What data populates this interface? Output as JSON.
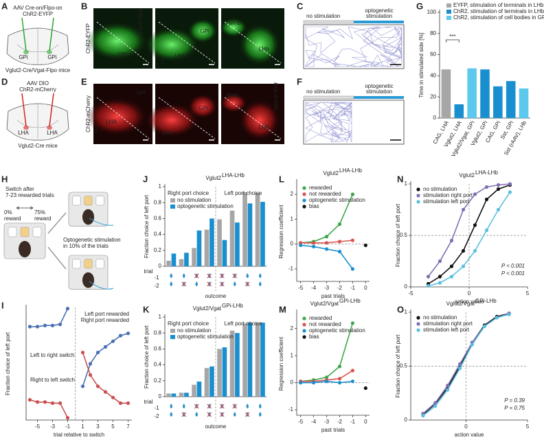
{
  "panel_labels": [
    "A",
    "B",
    "C",
    "D",
    "E",
    "F",
    "G",
    "H",
    "I",
    "J",
    "K",
    "L",
    "M",
    "N",
    "O"
  ],
  "panels": {
    "A": {
      "virus": "AAV Cre-on/Flpo-on",
      "construct": "ChR2-EYFP",
      "regions": [
        "GPi",
        "GPi"
      ],
      "mice": "Vglut2-Cre/Vgat-Flpo mice"
    },
    "B": {
      "stain": "ChR2-EYFP",
      "labels": [
        "GPi",
        "optical fiber",
        "LHA",
        "f",
        "GPi",
        "MHb",
        "LHb"
      ]
    },
    "C": {
      "left": "no stimulation",
      "right": [
        "optogenetic",
        "stimulation"
      ]
    },
    "D": {
      "virus": "AAV DIO",
      "construct": "ChR2-mCherry",
      "regions": [
        "LHA",
        "LHA"
      ],
      "mice": "Vglut2-Cre mice"
    },
    "E": {
      "stain": "ChR2-mCherry",
      "labels": [
        "GPi",
        "LHA",
        "f",
        "GPi",
        "LHA",
        "MHb",
        "LHb",
        "optical fiber"
      ]
    },
    "F": {
      "left": "no stimulation",
      "right": [
        "optogenetic",
        "stimulation"
      ]
    },
    "H": {
      "switch": [
        "Switch after",
        "7-23 rewarded trials"
      ],
      "low_pct": "0%",
      "low": "reward",
      "high_pct": "75%",
      "high": "reward",
      "stim": [
        "Optogenetic stimulation",
        "in 10% of the trials"
      ]
    }
  },
  "chart_data": [
    {
      "type": "bar",
      "ylabel": "Time in stimulated side [%]",
      "categories": [
        "CAG, LHA",
        "Vglut2, LHA",
        "Vglut2/Vgat, GPi",
        "Vglut2, GPi",
        "CAG, GPi",
        "Sst, GPi",
        "Sst (rAAV), LHb"
      ],
      "series": [
        {
          "name": "EYFP, stimulation of terminals in LHb",
          "color": "#a6a6a6",
          "values": [
            46,
            null,
            null,
            null,
            null,
            null,
            null
          ]
        },
        {
          "name": "ChR2, stimulation of terminals in LHb",
          "color": "#1a8fd0",
          "values": [
            null,
            13,
            null,
            46,
            30,
            35,
            null
          ]
        },
        {
          "name": "ChR2, stimulation of cell bodies in GPi",
          "color": "#5cc8ee",
          "values": [
            null,
            null,
            47,
            null,
            null,
            null,
            28
          ]
        }
      ],
      "ylim": [
        0,
        100
      ],
      "yticks": [
        0,
        20,
        40,
        60,
        80,
        100
      ],
      "annotations": [
        "***"
      ]
    },
    {
      "type": "line",
      "xlabel": "trial relative to switch",
      "ylabel": "Fraction choice of left port",
      "x": [
        -6,
        -5,
        -4,
        -3,
        -2,
        -1,
        0,
        1,
        2,
        3,
        4,
        5,
        6,
        7
      ],
      "series": [
        {
          "name": "Left port rewarded",
          "color": "#4a6fb5",
          "values": [
            0.83,
            0.83,
            0.84,
            0.84,
            0.85,
            0.99,
            null,
            0.3,
            0.5,
            0.6,
            0.65,
            0.7,
            0.75,
            0.77
          ]
        },
        {
          "name": "Right port rewarded",
          "color": "#c9504f",
          "values": [
            0.18,
            0.16,
            0.16,
            0.15,
            0.15,
            0.02,
            null,
            0.6,
            0.4,
            0.3,
            0.25,
            0.2,
            0.15,
            0.15
          ]
        }
      ],
      "xlim": [
        -6.5,
        7.5
      ],
      "ylim": [
        0,
        1
      ],
      "xticks": [
        -5,
        -3,
        -1,
        1,
        3,
        5,
        7
      ],
      "vline": 0,
      "annotations": [
        "Left to right switch",
        "Right to left switch"
      ]
    },
    {
      "type": "bar",
      "title": "Vglut2",
      "title_superscript": "LHA-LHb",
      "ylabel": "Fraction choice of left port",
      "xlabel": "outcome",
      "row_labels": [
        "trial",
        "-1",
        "-2"
      ],
      "categories": [
        null,
        null,
        null,
        null,
        null,
        null,
        null,
        null
      ],
      "series": [
        {
          "name": "no stimulation",
          "color": "#a6a6a6",
          "values": [
            0.07,
            0.09,
            0.23,
            0.46,
            0.59,
            0.7,
            0.93,
            0.92
          ]
        },
        {
          "name": "optogenetic stimulation",
          "color": "#1a8fd0",
          "values": [
            0.16,
            0.17,
            0.45,
            0.6,
            0.33,
            0.55,
            0.79,
            0.81
          ]
        }
      ],
      "ylim": [
        0,
        1
      ],
      "yticks": [
        0,
        0.2,
        0.4,
        0.6,
        0.8,
        1
      ],
      "annotations": [
        "Right port choice",
        "Left port choice"
      ],
      "annotation_colors": [
        "#c9504f",
        "#4a6fb5"
      ]
    },
    {
      "type": "bar",
      "title": "Vglut2/Vgat",
      "title_superscript": "GPi-LHb",
      "ylabel": "Fraction choice of left port",
      "xlabel": "outcome",
      "row_labels": [
        "trial",
        "-1",
        "-2"
      ],
      "categories": [
        null,
        null,
        null,
        null,
        null,
        null,
        null,
        null
      ],
      "series": [
        {
          "name": "no stimulation",
          "color": "#a6a6a6",
          "values": [
            0.04,
            0.05,
            0.15,
            0.36,
            0.6,
            0.83,
            0.92,
            0.93
          ]
        },
        {
          "name": "optogenetic stimulation",
          "color": "#1a8fd0",
          "values": [
            0.04,
            0.05,
            0.19,
            0.38,
            0.62,
            0.8,
            0.93,
            0.93
          ]
        }
      ],
      "ylim": [
        0,
        1
      ],
      "yticks": [
        0,
        0.2,
        0.4,
        0.6,
        0.8,
        1
      ],
      "annotations": [
        "Right port choice",
        "Left port choice"
      ],
      "annotation_colors": [
        "#c9504f",
        "#4a6fb5"
      ]
    },
    {
      "type": "line",
      "title": "Vglut2",
      "title_superscript": "LHA-LHb",
      "xlabel": "past trials",
      "ylabel": "Regression coefficient",
      "x": [
        -5,
        -4,
        -3,
        -2,
        -1
      ],
      "series": [
        {
          "name": "rewarded",
          "color": "#3da64a",
          "values": [
            0.05,
            0.1,
            0.3,
            0.8,
            2.0
          ]
        },
        {
          "name": "not rewarded",
          "color": "#d9534f",
          "values": [
            0.05,
            0.05,
            0.05,
            0.1,
            0.15
          ]
        },
        {
          "name": "optogenetic stimulation",
          "color": "#1a8fd0",
          "values": [
            -0.05,
            -0.1,
            -0.2,
            -0.3,
            -1.0
          ]
        },
        {
          "name": "bias",
          "color": "#111111",
          "x": [
            0
          ],
          "values": [
            -0.05
          ]
        }
      ],
      "xlim": [
        -5.3,
        0.3
      ],
      "ylim": [
        -1.5,
        2.5
      ],
      "xticks": [
        -5,
        -4,
        -3,
        -2,
        -1,
        0
      ],
      "yticks": [
        -1,
        0,
        1,
        2
      ],
      "hline": 0
    },
    {
      "type": "line",
      "title": "Vglut2/Vgat",
      "title_superscript": "GPi-LHb",
      "xlabel": "past trials",
      "ylabel": "Regression coefficient",
      "x": [
        -5,
        -4,
        -3,
        -2,
        -1
      ],
      "series": [
        {
          "name": "rewarded",
          "color": "#3da64a",
          "values": [
            0.05,
            0.1,
            0.2,
            0.6,
            2.2
          ]
        },
        {
          "name": "not rewarded",
          "color": "#d9534f",
          "values": [
            0.05,
            0.05,
            0.1,
            0.15,
            0.45
          ]
        },
        {
          "name": "optogenetic stimulation",
          "color": "#1a8fd0",
          "values": [
            0,
            0,
            0.05,
            0,
            0.05
          ]
        },
        {
          "name": "bias",
          "color": "#111111",
          "x": [
            0
          ],
          "values": [
            -0.2
          ]
        }
      ],
      "xlim": [
        -5.3,
        0.3
      ],
      "ylim": [
        -1.2,
        2.6
      ],
      "xticks": [
        -5,
        -4,
        -3,
        -2,
        -1,
        0
      ],
      "yticks": [
        -1,
        0,
        1,
        2
      ],
      "hline": 0
    },
    {
      "type": "line",
      "title": "Vglut2",
      "title_superscript": "LHA-LHb",
      "xlabel": "action value",
      "ylabel": "Fraction choice of left port",
      "x": [
        -3.5,
        -2.5,
        -1.5,
        -0.5,
        0.5,
        1.5,
        2.5,
        3.5
      ],
      "series": [
        {
          "name": "no stimulation",
          "color": "#111111",
          "values": [
            0.03,
            0.1,
            0.2,
            0.35,
            0.6,
            0.85,
            0.95,
            0.99
          ]
        },
        {
          "name": "stimulation right port",
          "color": "#7e6fb3",
          "values": [
            0.1,
            0.25,
            0.45,
            0.75,
            0.9,
            0.97,
            0.99,
            1
          ]
        },
        {
          "name": "stimulation left port",
          "color": "#5bc0de",
          "values": [
            0.01,
            0.04,
            0.1,
            0.2,
            0.35,
            0.55,
            0.75,
            0.92
          ]
        }
      ],
      "xlim": [
        -5,
        5
      ],
      "ylim": [
        0,
        1
      ],
      "xticks": [
        -5,
        0,
        5
      ],
      "yticks": [
        0,
        0.5,
        1
      ],
      "hline": 0.5,
      "vline": 0,
      "annotations": [
        "P < 0.001",
        "P < 0.001"
      ],
      "annotation_colors": [
        "#7e6fb3",
        "#5bc0de"
      ]
    },
    {
      "type": "line",
      "title": "Vglut2/Vgat",
      "title_superscript": "GPi-LHb",
      "xlabel": "action value",
      "ylabel": "Fraction choice of left port",
      "x": [
        -3.5,
        -2.5,
        -1.5,
        -0.5,
        0.5,
        1.5,
        2.5,
        3.5
      ],
      "series": [
        {
          "name": "no stimulation",
          "color": "#111111",
          "values": [
            0.05,
            0.15,
            0.3,
            0.5,
            0.72,
            0.88,
            0.96,
            0.99
          ]
        },
        {
          "name": "stimulation right port",
          "color": "#7e6fb3",
          "values": [
            0.06,
            0.16,
            0.32,
            0.52,
            0.72,
            0.87,
            0.95,
            0.99
          ]
        },
        {
          "name": "stimulation left port",
          "color": "#5bc0de",
          "values": [
            0.04,
            0.13,
            0.28,
            0.48,
            0.7,
            0.87,
            0.95,
            0.98
          ]
        }
      ],
      "xlim": [
        -4.5,
        5
      ],
      "ylim": [
        0,
        1
      ],
      "xticks": [
        0,
        5
      ],
      "yticks": [
        0,
        0.5,
        1
      ],
      "hline": 0.5,
      "vline": 0,
      "annotations": [
        "P = 0.39",
        "P = 0.75"
      ],
      "annotation_colors": [
        "#7e6fb3",
        "#5bc0de"
      ]
    }
  ]
}
